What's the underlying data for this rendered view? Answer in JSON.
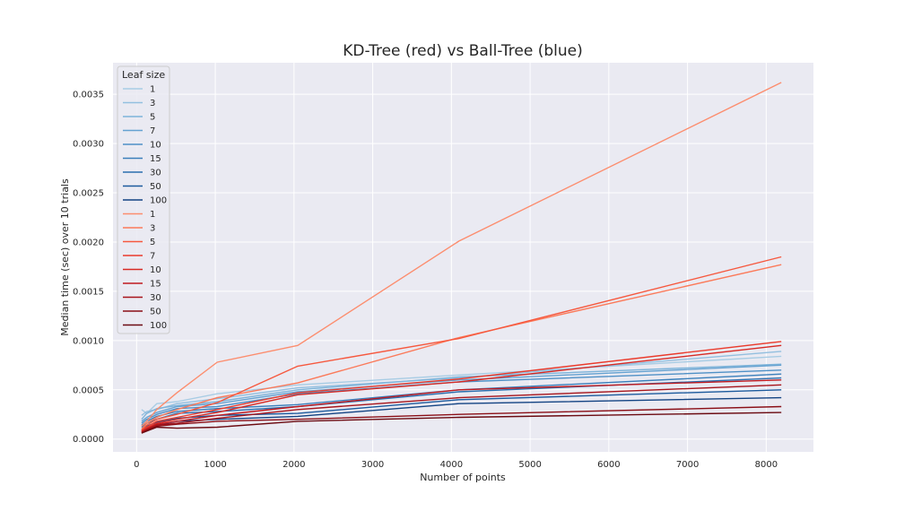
{
  "chart_data": {
    "type": "line",
    "title": "KD-Tree (red) vs Ball-Tree (blue)",
    "xlabel": "Number of points",
    "ylabel": "Median time (sec) over 10 trials",
    "xlim": [
      -300,
      8600
    ],
    "ylim": [
      -0.00013,
      0.00382
    ],
    "xticks": [
      0,
      1000,
      2000,
      3000,
      4000,
      5000,
      6000,
      7000,
      8000
    ],
    "yticks": [
      0.0,
      0.0005,
      0.001,
      0.0015,
      0.002,
      0.0025,
      0.003,
      0.0035
    ],
    "xtick_labels": [
      "0",
      "1000",
      "2000",
      "3000",
      "4000",
      "5000",
      "6000",
      "7000",
      "8000"
    ],
    "ytick_labels": [
      "0.0000",
      "0.0005",
      "0.0010",
      "0.0015",
      "0.0020",
      "0.0025",
      "0.0030",
      "0.0035"
    ],
    "grid": true,
    "legend": {
      "title": "Leaf size",
      "placement": "upper-left"
    },
    "x": [
      64,
      128,
      256,
      512,
      1024,
      2048,
      4096,
      8192
    ],
    "series": [
      {
        "name": "1",
        "color": "#a8cce4",
        "values": [
          0.0003,
          0.00026,
          0.00036,
          0.00038,
          0.00046,
          0.00055,
          0.00065,
          0.00084
        ]
      },
      {
        "name": "3",
        "color": "#93bfdf",
        "values": [
          0.00024,
          0.00028,
          0.0003,
          0.00036,
          0.00041,
          0.00052,
          0.00062,
          0.00089
        ]
      },
      {
        "name": "5",
        "color": "#7db3d9",
        "values": [
          0.0002,
          0.00026,
          0.00031,
          0.00034,
          0.00038,
          0.0005,
          0.00063,
          0.00076
        ]
      },
      {
        "name": "7",
        "color": "#65a2d1",
        "values": [
          0.00018,
          0.00022,
          0.00027,
          0.00033,
          0.00036,
          0.00048,
          0.0006,
          0.00075
        ]
      },
      {
        "name": "10",
        "color": "#4f90c6",
        "values": [
          0.00016,
          0.0002,
          0.00025,
          0.00031,
          0.00033,
          0.00046,
          0.00058,
          0.0007
        ]
      },
      {
        "name": "15",
        "color": "#3a7fbb",
        "values": [
          0.00014,
          0.00018,
          0.00023,
          0.00028,
          0.00031,
          0.00035,
          0.0005,
          0.00066
        ]
      },
      {
        "name": "30",
        "color": "#2a6eae",
        "values": [
          0.00012,
          0.00016,
          0.0002,
          0.00026,
          0.00028,
          0.00033,
          0.00048,
          0.00062
        ]
      },
      {
        "name": "50",
        "color": "#1c5a9d",
        "values": [
          0.0001,
          0.00013,
          0.00017,
          0.00021,
          0.00024,
          0.00026,
          0.0004,
          0.0005
        ]
      },
      {
        "name": "100",
        "color": "#134383",
        "values": [
          9e-05,
          0.00011,
          0.00014,
          0.00018,
          0.0002,
          0.00023,
          0.00036,
          0.00042
        ]
      },
      {
        "name": "1",
        "color": "#fc8d6e",
        "values": [
          0.00013,
          0.00018,
          0.0003,
          0.00047,
          0.00078,
          0.00095,
          0.00201,
          0.00362
        ]
      },
      {
        "name": "3",
        "color": "#fb7a5a",
        "values": [
          0.0001,
          0.00016,
          0.00022,
          0.0003,
          0.00042,
          0.00057,
          0.00103,
          0.00177
        ]
      },
      {
        "name": "5",
        "color": "#f6583e",
        "values": [
          9e-05,
          0.00014,
          0.0002,
          0.00025,
          0.00037,
          0.00074,
          0.00102,
          0.00185
        ]
      },
      {
        "name": "7",
        "color": "#ea3b2c",
        "values": [
          8e-05,
          0.00012,
          0.00018,
          0.00022,
          0.0003,
          0.00047,
          0.00061,
          0.00099
        ]
      },
      {
        "name": "10",
        "color": "#d72a24",
        "values": [
          8e-05,
          0.00011,
          0.00016,
          0.0002,
          0.00027,
          0.00045,
          0.00058,
          0.00095
        ]
      },
      {
        "name": "15",
        "color": "#c01a1f",
        "values": [
          7e-05,
          0.0001,
          0.00015,
          0.00018,
          0.00024,
          0.00033,
          0.0005,
          0.0006
        ]
      },
      {
        "name": "30",
        "color": "#a7141b",
        "values": [
          7e-05,
          9e-05,
          0.00014,
          0.00016,
          0.00021,
          0.0003,
          0.00042,
          0.00055
        ]
      },
      {
        "name": "50",
        "color": "#8a0e16",
        "values": [
          6e-05,
          9e-05,
          0.00013,
          0.00015,
          0.00018,
          0.0002,
          0.00025,
          0.00033
        ]
      },
      {
        "name": "100",
        "color": "#6b0a11",
        "values": [
          6e-05,
          8e-05,
          0.00012,
          0.00011,
          0.00012,
          0.00018,
          0.00022,
          0.00027
        ]
      }
    ]
  }
}
